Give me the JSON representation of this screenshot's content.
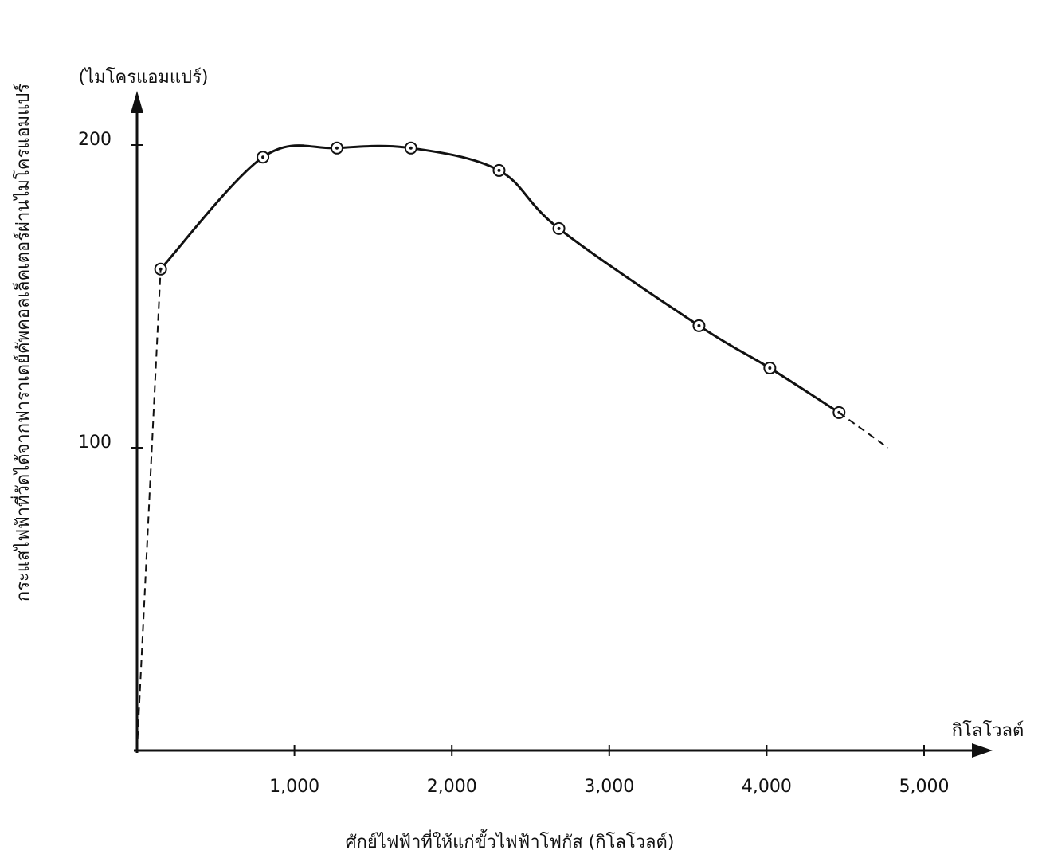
{
  "chart_data": {
    "type": "line",
    "y_unit": "(ไมโครแอมแปร์)",
    "y_label": "กระแสไฟฟ้าที่วัดได้จากฟาราเดย์คัพคอลเล็คเตอร์ผ่านไมโครแอมแปร์",
    "x_unit": "กิโลโวลต์",
    "x_label": "ศักย์ไฟฟ้าที่ให้แก่ขั้วไฟฟ้าโฟกัส  (กิโลโวลต์)",
    "xlim": [
      0,
      5400
    ],
    "ylim": [
      0,
      216
    ],
    "xticks": [
      {
        "value": 1000,
        "label": "1,000"
      },
      {
        "value": 2000,
        "label": "2,000"
      },
      {
        "value": 3000,
        "label": "3,000"
      },
      {
        "value": 4000,
        "label": "4,000"
      },
      {
        "value": 5000,
        "label": "5,000"
      }
    ],
    "yticks": [
      100,
      200
    ],
    "color": "#111111",
    "series": [
      {
        "x": [
          150,
          800,
          1270,
          1740,
          2300,
          2680,
          3570,
          4020,
          4460
        ],
        "values": [
          159,
          196,
          199,
          199,
          191.6,
          172.4,
          140.3,
          126.3,
          111.6
        ],
        "dash": false,
        "markers": true
      },
      {
        "x": [
          0,
          150
        ],
        "values": [
          0,
          159
        ],
        "dash": true,
        "markers": false
      },
      {
        "x": [
          4460,
          4770
        ],
        "values": [
          111.6,
          100
        ],
        "dash": true,
        "markers": false
      }
    ]
  }
}
